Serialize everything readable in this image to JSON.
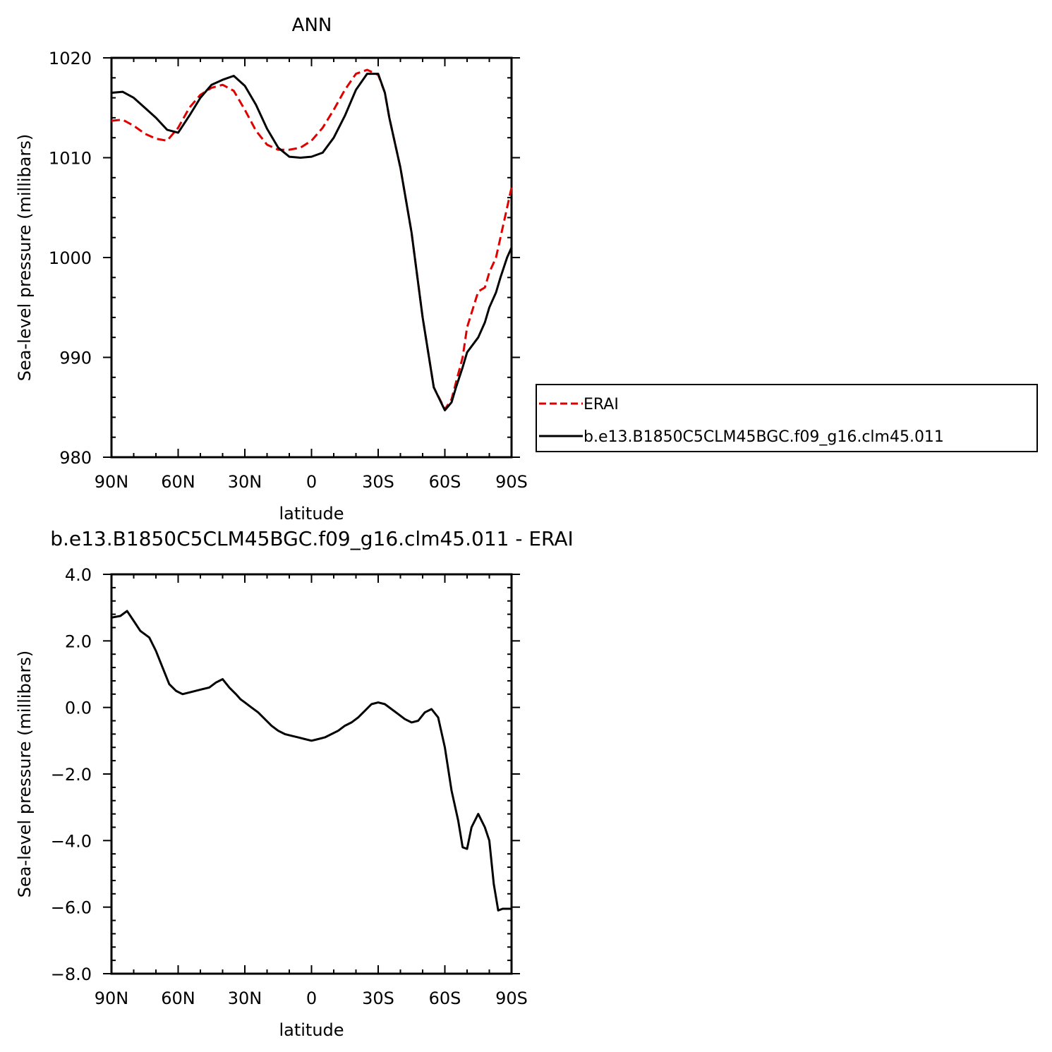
{
  "chart_data": [
    {
      "type": "line",
      "title": "ANN",
      "xlabel": "latitude",
      "ylabel": "Sea-level pressure (millibars)",
      "xlim": [
        90,
        -90
      ],
      "ylim": [
        980,
        1020
      ],
      "x_ticks": [
        90,
        60,
        30,
        0,
        -30,
        -60,
        -90
      ],
      "x_tick_labels": [
        "90N",
        "60N",
        "30N",
        "0",
        "30S",
        "60S",
        "90S"
      ],
      "y_ticks": [
        980,
        990,
        1000,
        1010,
        1020
      ],
      "y_tick_labels": [
        "980",
        "990",
        "1000",
        "1010",
        "1020"
      ],
      "legend": "right",
      "series": [
        {
          "name": "ERAI",
          "color": "#e00000",
          "dash": true,
          "x": [
            90,
            85,
            80,
            75,
            70,
            65,
            60,
            55,
            50,
            45,
            40,
            35,
            30,
            25,
            20,
            15,
            10,
            5,
            0,
            -5,
            -10,
            -15,
            -20,
            -25,
            -30,
            -33,
            -35,
            -40,
            -45,
            -50,
            -55,
            -60,
            -63,
            -65,
            -68,
            -70,
            -75,
            -78,
            -80,
            -83,
            -85,
            -88,
            -90
          ],
          "y": [
            1013.7,
            1013.8,
            1013.2,
            1012.4,
            1011.9,
            1011.7,
            1013.0,
            1015.0,
            1016.3,
            1017.0,
            1017.3,
            1016.7,
            1014.8,
            1012.7,
            1011.3,
            1010.8,
            1010.8,
            1011.0,
            1011.7,
            1013.0,
            1014.8,
            1016.8,
            1018.4,
            1018.8,
            1018.3,
            1016.5,
            1014.0,
            1009.0,
            1002.5,
            994.0,
            987.0,
            984.8,
            985.8,
            987.5,
            990.0,
            993.0,
            996.6,
            997.0,
            998.5,
            1000.0,
            1002.0,
            1005.0,
            1007.0
          ]
        },
        {
          "name": "b.e13.B1850C5CLM45BGC.f09_g16.clm45.011",
          "color": "#000000",
          "dash": false,
          "x": [
            90,
            85,
            80,
            75,
            70,
            65,
            60,
            55,
            50,
            45,
            40,
            35,
            30,
            25,
            20,
            15,
            10,
            5,
            0,
            -5,
            -10,
            -15,
            -20,
            -25,
            -30,
            -33,
            -35,
            -40,
            -45,
            -50,
            -55,
            -60,
            -63,
            -65,
            -68,
            -70,
            -75,
            -78,
            -80,
            -83,
            -85,
            -88,
            -90
          ],
          "y": [
            1016.5,
            1016.6,
            1016.0,
            1015.0,
            1014.0,
            1012.8,
            1012.5,
            1014.2,
            1016.0,
            1017.3,
            1017.8,
            1018.2,
            1017.2,
            1015.3,
            1012.9,
            1011.0,
            1010.1,
            1010.0,
            1010.1,
            1010.5,
            1012.0,
            1014.2,
            1016.8,
            1018.4,
            1018.4,
            1016.5,
            1014.0,
            1009.0,
            1002.5,
            994.0,
            987.0,
            984.7,
            985.5,
            987.0,
            989.0,
            990.5,
            992.0,
            993.5,
            995.0,
            996.5,
            998.0,
            1000.0,
            1001.0
          ]
        }
      ]
    },
    {
      "type": "line",
      "title": "b.e13.B1850C5CLM45BGC.f09_g16.clm45.011 - ERAI",
      "xlabel": "latitude",
      "ylabel": "Sea-level pressure (millibars)",
      "xlim": [
        90,
        -90
      ],
      "ylim": [
        -8,
        4
      ],
      "x_ticks": [
        90,
        60,
        30,
        0,
        -30,
        -60,
        -90
      ],
      "x_tick_labels": [
        "90N",
        "60N",
        "30N",
        "0",
        "30S",
        "60S",
        "90S"
      ],
      "y_ticks": [
        4,
        2,
        0,
        -2,
        -4,
        -6,
        -8
      ],
      "y_tick_labels": [
        "4.0",
        "2.0",
        "0.0",
        "−2.0",
        "−4.0",
        "−6.0",
        "−8.0"
      ],
      "series": [
        {
          "color": "#000000",
          "x": [
            90,
            86,
            83,
            80,
            77,
            73,
            70,
            67,
            64,
            61,
            58,
            55,
            52,
            49,
            46,
            43,
            40,
            37,
            34,
            32,
            30,
            27,
            24,
            21,
            18,
            15,
            12,
            9,
            6,
            3,
            0,
            -3,
            -6,
            -9,
            -12,
            -15,
            -18,
            -21,
            -24,
            -27,
            -30,
            -33,
            -36,
            -39,
            -42,
            -45,
            -48,
            -51,
            -54,
            -57,
            -60,
            -63,
            -66,
            -68,
            -70,
            -72,
            -75,
            -78,
            -80,
            -82,
            -84,
            -86,
            -88,
            -89,
            -90
          ],
          "y": [
            2.7,
            2.75,
            2.9,
            2.6,
            2.3,
            2.1,
            1.7,
            1.2,
            0.7,
            0.5,
            0.4,
            0.45,
            0.5,
            0.55,
            0.6,
            0.75,
            0.85,
            0.6,
            0.4,
            0.25,
            0.15,
            0.0,
            -0.15,
            -0.35,
            -0.55,
            -0.7,
            -0.8,
            -0.85,
            -0.9,
            -0.95,
            -1.0,
            -0.95,
            -0.9,
            -0.8,
            -0.7,
            -0.55,
            -0.45,
            -0.3,
            -0.1,
            0.1,
            0.15,
            0.1,
            -0.05,
            -0.2,
            -0.35,
            -0.45,
            -0.4,
            -0.15,
            -0.05,
            -0.3,
            -1.2,
            -2.5,
            -3.4,
            -4.2,
            -4.25,
            -3.6,
            -3.2,
            -3.6,
            -4.0,
            -5.3,
            -6.1,
            -6.05,
            -6.05,
            -6.05,
            -6.05
          ]
        }
      ]
    }
  ]
}
